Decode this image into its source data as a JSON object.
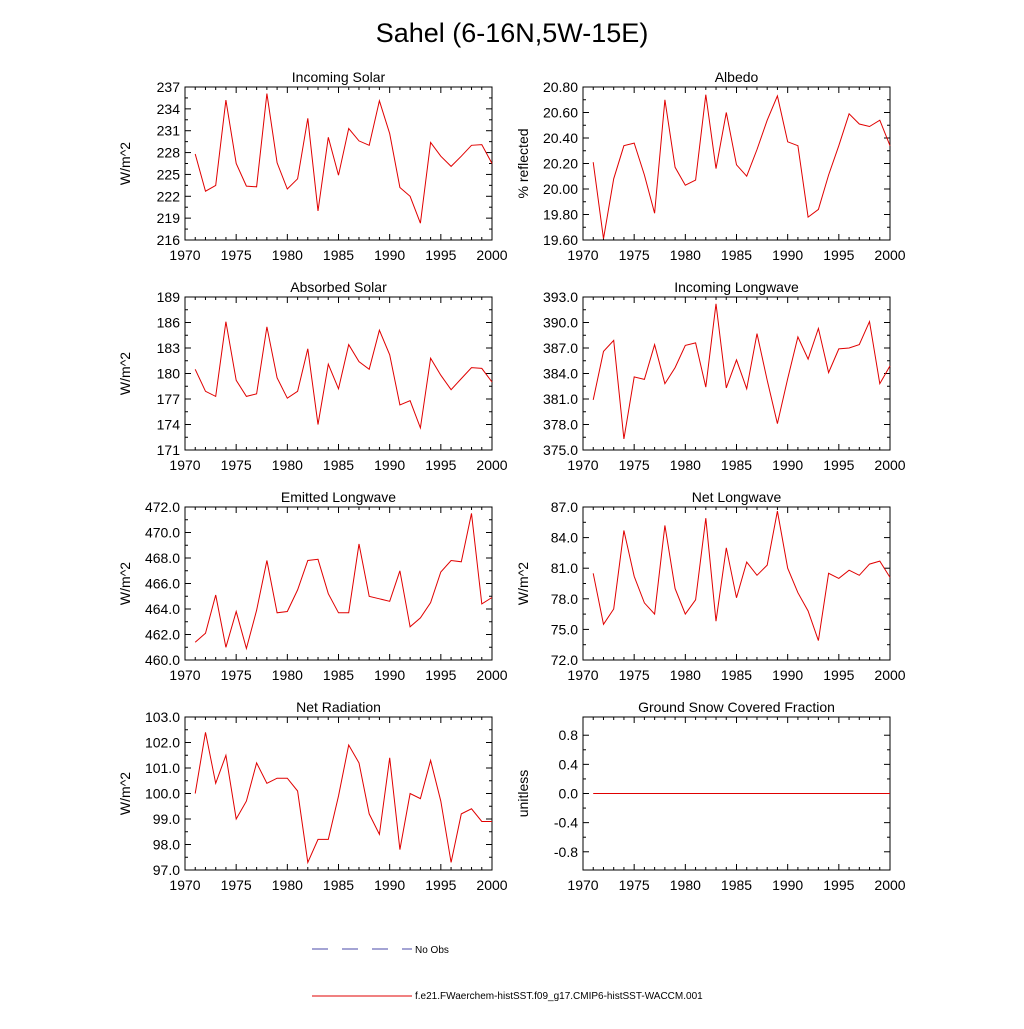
{
  "figure_title": "Sahel (6-16N,5W-15E)",
  "legend": {
    "obs_label": "No Obs",
    "model_label": "f.e21.FWaerchem-histSST.f09_g17.CMIP6-histSST-WACCM.001",
    "obs_color": "#4a4aa8",
    "model_color": "#e00000"
  },
  "chart_data": [
    {
      "type": "line",
      "title": "Incoming Solar",
      "ylabel": "W/m^2",
      "xlim": [
        1970,
        2000
      ],
      "ylim": [
        216,
        237
      ],
      "xticks": [
        1970,
        1975,
        1980,
        1985,
        1990,
        1995,
        2000
      ],
      "yticks": [
        216,
        219,
        222,
        225,
        228,
        231,
        234,
        237
      ],
      "ytick_labels": [
        "216",
        "219",
        "222",
        "225",
        "228",
        "231",
        "234",
        "237"
      ],
      "series": [
        {
          "x": [
            1971,
            1972,
            1973,
            1974,
            1975,
            1976,
            1977,
            1978,
            1979,
            1980,
            1981,
            1982,
            1983,
            1984,
            1985,
            1986,
            1987,
            1988,
            1989,
            1990,
            1991,
            1992,
            1993,
            1994,
            1995,
            1996,
            1997,
            1998,
            1999,
            2000
          ],
          "values": [
            227.8,
            222.7,
            223.5,
            235.2,
            226.5,
            223.4,
            223.3,
            236.1,
            226.6,
            223.0,
            224.4,
            232.7,
            220.0,
            230.1,
            224.9,
            231.3,
            229.6,
            229.0,
            235.1,
            230.6,
            223.2,
            222.0,
            218.3,
            229.4,
            227.5,
            226.1,
            227.5,
            229.0,
            229.1,
            226.5
          ],
          "color": "#e00000"
        }
      ]
    },
    {
      "type": "line",
      "title": "Albedo",
      "ylabel": "% reflected",
      "xlim": [
        1970,
        2000
      ],
      "ylim": [
        19.6,
        20.8
      ],
      "xticks": [
        1970,
        1975,
        1980,
        1985,
        1990,
        1995,
        2000
      ],
      "yticks": [
        19.6,
        19.8,
        20.0,
        20.2,
        20.4,
        20.6,
        20.8
      ],
      "ytick_labels": [
        "19.60",
        "19.80",
        "20.00",
        "20.20",
        "20.40",
        "20.60",
        "20.80"
      ],
      "series": [
        {
          "x": [
            1971,
            1972,
            1973,
            1974,
            1975,
            1976,
            1977,
            1978,
            1979,
            1980,
            1981,
            1982,
            1983,
            1984,
            1985,
            1986,
            1987,
            1988,
            1989,
            1990,
            1991,
            1992,
            1993,
            1994,
            1995,
            1996,
            1997,
            1998,
            1999,
            2000
          ],
          "values": [
            20.21,
            19.61,
            20.08,
            20.34,
            20.36,
            20.11,
            19.81,
            20.7,
            20.17,
            20.03,
            20.07,
            20.74,
            20.16,
            20.6,
            20.19,
            20.1,
            20.31,
            20.54,
            20.73,
            20.37,
            20.34,
            19.78,
            19.84,
            20.11,
            20.34,
            20.59,
            20.51,
            20.49,
            20.54,
            20.34
          ],
          "color": "#e00000"
        }
      ]
    },
    {
      "type": "line",
      "title": "Absorbed Solar",
      "ylabel": "W/m^2",
      "xlim": [
        1970,
        2000
      ],
      "ylim": [
        171,
        189
      ],
      "xticks": [
        1970,
        1975,
        1980,
        1985,
        1990,
        1995,
        2000
      ],
      "yticks": [
        171,
        174,
        177,
        180,
        183,
        186,
        189
      ],
      "ytick_labels": [
        "171",
        "174",
        "177",
        "180",
        "183",
        "186",
        "189"
      ],
      "series": [
        {
          "x": [
            1971,
            1972,
            1973,
            1974,
            1975,
            1976,
            1977,
            1978,
            1979,
            1980,
            1981,
            1982,
            1983,
            1984,
            1985,
            1986,
            1987,
            1988,
            1989,
            1990,
            1991,
            1992,
            1993,
            1994,
            1995,
            1996,
            1997,
            1998,
            1999,
            2000
          ],
          "values": [
            180.5,
            177.9,
            177.3,
            186.1,
            179.2,
            177.3,
            177.6,
            185.5,
            179.5,
            177.1,
            177.9,
            182.9,
            174.0,
            181.1,
            178.2,
            183.4,
            181.4,
            180.5,
            185.1,
            182.2,
            176.3,
            176.8,
            173.6,
            181.8,
            179.8,
            178.1,
            179.4,
            180.7,
            180.6,
            179.0
          ],
          "color": "#e00000"
        }
      ]
    },
    {
      "type": "line",
      "title": "Incoming Longwave",
      "ylabel": "",
      "xlim": [
        1970,
        2000
      ],
      "ylim": [
        375,
        393
      ],
      "xticks": [
        1970,
        1975,
        1980,
        1985,
        1990,
        1995,
        2000
      ],
      "yticks": [
        375,
        378,
        381,
        384,
        387,
        390,
        393
      ],
      "ytick_labels": [
        "375.0",
        "378.0",
        "381.0",
        "384.0",
        "387.0",
        "390.0",
        "393.0"
      ],
      "series": [
        {
          "x": [
            1971,
            1972,
            1973,
            1974,
            1975,
            1976,
            1977,
            1978,
            1979,
            1980,
            1981,
            1982,
            1983,
            1984,
            1985,
            1986,
            1987,
            1988,
            1989,
            1990,
            1991,
            1992,
            1993,
            1994,
            1995,
            1996,
            1997,
            1998,
            1999,
            2000
          ],
          "values": [
            380.9,
            386.6,
            387.9,
            376.3,
            383.6,
            383.3,
            387.4,
            382.8,
            384.7,
            387.3,
            387.6,
            382.4,
            392.2,
            382.3,
            385.6,
            382.2,
            388.7,
            383.2,
            378.1,
            383.4,
            388.3,
            385.7,
            389.3,
            384.1,
            386.9,
            387.0,
            387.4,
            390.1,
            382.8,
            384.9
          ],
          "color": "#e00000"
        }
      ]
    },
    {
      "type": "line",
      "title": "Emitted Longwave",
      "ylabel": "W/m^2",
      "xlim": [
        1970,
        2000
      ],
      "ylim": [
        460,
        472
      ],
      "xticks": [
        1970,
        1975,
        1980,
        1985,
        1990,
        1995,
        2000
      ],
      "yticks": [
        460,
        462,
        464,
        466,
        468,
        470,
        472
      ],
      "ytick_labels": [
        "460.0",
        "462.0",
        "464.0",
        "466.0",
        "468.0",
        "470.0",
        "472.0"
      ],
      "series": [
        {
          "x": [
            1971,
            1972,
            1973,
            1974,
            1975,
            1976,
            1977,
            1978,
            1979,
            1980,
            1981,
            1982,
            1983,
            1984,
            1985,
            1986,
            1987,
            1988,
            1989,
            1990,
            1991,
            1992,
            1993,
            1994,
            1995,
            1996,
            1997,
            1998,
            1999,
            2000
          ],
          "values": [
            461.4,
            462.1,
            465.1,
            461.0,
            463.8,
            460.9,
            463.9,
            467.8,
            463.7,
            463.8,
            465.5,
            467.8,
            467.9,
            465.2,
            463.7,
            463.7,
            469.1,
            465.0,
            464.8,
            464.6,
            467.0,
            462.6,
            463.3,
            464.5,
            466.9,
            467.8,
            467.7,
            471.5,
            464.4,
            464.9
          ],
          "color": "#e00000"
        }
      ]
    },
    {
      "type": "line",
      "title": "Net Longwave",
      "ylabel": "W/m^2",
      "xlim": [
        1970,
        2000
      ],
      "ylim": [
        72,
        87
      ],
      "xticks": [
        1970,
        1975,
        1980,
        1985,
        1990,
        1995,
        2000
      ],
      "yticks": [
        72,
        75,
        78,
        81,
        84,
        87
      ],
      "ytick_labels": [
        "72.0",
        "75.0",
        "78.0",
        "81.0",
        "84.0",
        "87.0"
      ],
      "series": [
        {
          "x": [
            1971,
            1972,
            1973,
            1974,
            1975,
            1976,
            1977,
            1978,
            1979,
            1980,
            1981,
            1982,
            1983,
            1984,
            1985,
            1986,
            1987,
            1988,
            1989,
            1990,
            1991,
            1992,
            1993,
            1994,
            1995,
            1996,
            1997,
            1998,
            1999,
            2000
          ],
          "values": [
            80.5,
            75.5,
            77.0,
            84.7,
            80.2,
            77.6,
            76.5,
            85.2,
            79.0,
            76.5,
            77.9,
            85.9,
            75.8,
            83.0,
            78.1,
            81.6,
            80.3,
            81.3,
            86.6,
            81.0,
            78.6,
            76.8,
            73.9,
            80.5,
            80.0,
            80.8,
            80.3,
            81.4,
            81.7,
            80.1
          ],
          "color": "#e00000"
        }
      ]
    },
    {
      "type": "line",
      "title": "Net Radiation",
      "ylabel": "W/m^2",
      "xlim": [
        1970,
        2000
      ],
      "ylim": [
        97,
        103
      ],
      "xticks": [
        1970,
        1975,
        1980,
        1985,
        1990,
        1995,
        2000
      ],
      "yticks": [
        97,
        98,
        99,
        100,
        101,
        102,
        103
      ],
      "ytick_labels": [
        "97.0",
        "98.0",
        "99.0",
        "100.0",
        "101.0",
        "102.0",
        "103.0"
      ],
      "series": [
        {
          "x": [
            1971,
            1972,
            1973,
            1974,
            1975,
            1976,
            1977,
            1978,
            1979,
            1980,
            1981,
            1982,
            1983,
            1984,
            1985,
            1986,
            1987,
            1988,
            1989,
            1990,
            1991,
            1992,
            1993,
            1994,
            1995,
            1996,
            1997,
            1998,
            1999,
            2000
          ],
          "values": [
            100.0,
            102.4,
            100.4,
            101.5,
            99.0,
            99.7,
            101.2,
            100.4,
            100.6,
            100.6,
            100.1,
            97.3,
            98.2,
            98.2,
            99.9,
            101.9,
            101.2,
            99.2,
            98.4,
            101.4,
            97.8,
            100.0,
            99.8,
            101.3,
            99.7,
            97.3,
            99.2,
            99.4,
            98.9,
            98.9
          ],
          "color": "#e00000"
        }
      ]
    },
    {
      "type": "line",
      "title": "Ground Snow Covered Fraction",
      "ylabel": "unitless",
      "xlim": [
        1970,
        2000
      ],
      "ylim": [
        -1.05,
        1.05
      ],
      "xticks": [
        1970,
        1975,
        1980,
        1985,
        1990,
        1995,
        2000
      ],
      "yticks": [
        -0.8,
        -0.4,
        0.0,
        0.4,
        0.8
      ],
      "ytick_labels": [
        "-0.8",
        "-0.4",
        "0.0",
        "0.4",
        "0.8"
      ],
      "series": [
        {
          "x": [
            1971,
            1972,
            1973,
            1974,
            1975,
            1976,
            1977,
            1978,
            1979,
            1980,
            1981,
            1982,
            1983,
            1984,
            1985,
            1986,
            1987,
            1988,
            1989,
            1990,
            1991,
            1992,
            1993,
            1994,
            1995,
            1996,
            1997,
            1998,
            1999,
            2000
          ],
          "values": [
            0,
            0,
            0,
            0,
            0,
            0,
            0,
            0,
            0,
            0,
            0,
            0,
            0,
            0,
            0,
            0,
            0,
            0,
            0,
            0,
            0,
            0,
            0,
            0,
            0,
            0,
            0,
            0,
            0,
            0
          ],
          "color": "#e00000"
        }
      ]
    }
  ]
}
